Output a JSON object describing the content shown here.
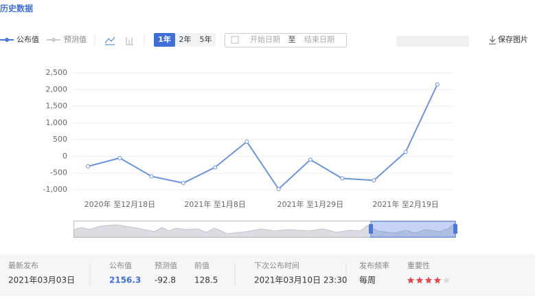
{
  "header": {
    "title": "历史数据"
  },
  "toolbar": {
    "legend": [
      "公布值",
      "预测值"
    ],
    "ranges": [
      "1年",
      "2年",
      "5年"
    ],
    "start_date": "开始日期",
    "to": "至",
    "end_date": "结束日期",
    "save": "保存图片"
  },
  "chart_data": {
    "type": "line",
    "categories": [
      null,
      "2020年 至12月18日",
      null,
      null,
      "2021年 至1月8日",
      null,
      null,
      "2021年 至1月29日",
      null,
      null,
      "2021年 至2月19日",
      null
    ],
    "series": [
      {
        "name": "公布值",
        "color": "#6b93e0",
        "values": [
          -300,
          -50,
          -600,
          -800,
          -330,
          440,
          -980,
          -100,
          -660,
          -720,
          130,
          2156.3
        ]
      }
    ],
    "ylim": [
      -1000,
      2500
    ],
    "yticks": [
      {
        "value": -1000,
        "label": "-1,000"
      },
      -500,
      0,
      500,
      {
        "value": 1000,
        "label": "1,000"
      },
      {
        "value": 1500,
        "label": "1,500"
      },
      {
        "value": 2000,
        "label": "2,000"
      },
      {
        "value": 2500,
        "label": "2,500"
      }
    ],
    "grid": true
  },
  "footer": {
    "latest_label": "最新发布",
    "latest": "2021年03月03日",
    "actual_label": "公布值",
    "actual": "2156.3",
    "forecast_label": "预测值",
    "forecast": "-92.8",
    "previous_label": "前值",
    "previous": "128.5",
    "next_label": "下次公布时间",
    "next": "2021年03月10日 23:30",
    "freq_label": "发布频率",
    "freq": "每周",
    "importance_label": "重要性",
    "importance": 4
  }
}
